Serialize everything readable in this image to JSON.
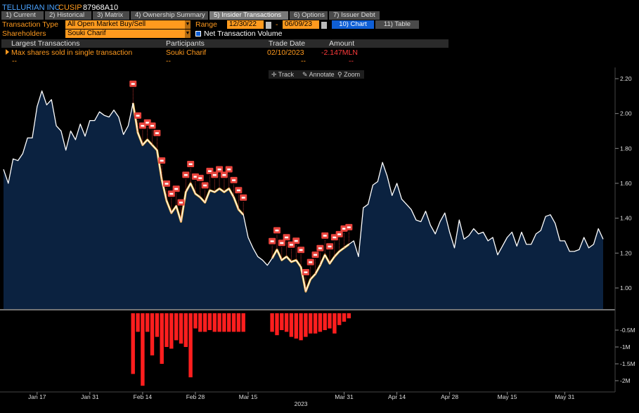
{
  "header": {
    "company": "TELLURIAN INC",
    "cusip_label": "CUSIP",
    "cusip": "87968A10"
  },
  "tabs": [
    {
      "label": "1) Current"
    },
    {
      "label": "2) Historical"
    },
    {
      "label": "3) Matrix"
    },
    {
      "label": "4) Ownership Summary"
    },
    {
      "label": "5) Insider Transactions"
    },
    {
      "label": "6) Options"
    },
    {
      "label": "7) Issuer Debt"
    }
  ],
  "controls": {
    "transaction_type_label": "Transaction Type",
    "transaction_type_value": "All Open Market Buy/Sell",
    "range_label": "Range",
    "range_start": "12/30/22",
    "range_sep": "-",
    "range_end": "06/09/23",
    "chart_button": "10) Chart",
    "table_button": "11) Table",
    "shareholders_label": "Shareholders",
    "shareholders_value": "Souki Charif",
    "net_volume_label": "Net Transaction Volume"
  },
  "largest": {
    "columns": [
      "Largest Transactions",
      "Participants",
      "Trade Date",
      "Amount"
    ],
    "rows": [
      {
        "desc": "Max shares sold in single transaction",
        "participant": "Souki Charif",
        "date": "02/10/2023",
        "amount": "-2.147MLN"
      },
      {
        "desc": "--",
        "participant": "--",
        "date": "--",
        "amount": "--"
      }
    ]
  },
  "toolbar": {
    "track": "Track",
    "annotate": "Annotate",
    "zoom": "Zoom"
  },
  "colors": {
    "accent": "#ff9a1e",
    "price_line": "#ffffff",
    "price_fill": "#0b2240",
    "marker": "#e8433c",
    "volume_bar": "#ff1e1e",
    "highlight_line": "#f5b942"
  },
  "chart_data": {
    "type": "line",
    "price": {
      "y_ticks": [
        "2.20",
        "2.00",
        "1.80",
        "1.60",
        "1.40",
        "1.20",
        "1.00"
      ],
      "ylim": [
        0.88,
        2.26
      ],
      "values": [
        1.68,
        1.6,
        1.74,
        1.73,
        1.77,
        1.86,
        1.86,
        2.04,
        2.13,
        2.05,
        2.08,
        1.93,
        1.9,
        1.79,
        1.9,
        1.85,
        1.94,
        1.87,
        1.96,
        1.96,
        2.01,
        1.99,
        1.98,
        2.02,
        1.98,
        1.88,
        1.93,
        2.06,
        1.89,
        1.82,
        1.85,
        1.82,
        1.79,
        1.62,
        1.5,
        1.43,
        1.47,
        1.38,
        1.55,
        1.6,
        1.54,
        1.52,
        1.49,
        1.56,
        1.55,
        1.57,
        1.55,
        1.57,
        1.52,
        1.45,
        1.42,
        1.29,
        1.23,
        1.18,
        1.16,
        1.13,
        1.17,
        1.22,
        1.16,
        1.18,
        1.15,
        1.16,
        1.12,
        0.98,
        1.05,
        1.08,
        1.13,
        1.19,
        1.14,
        1.18,
        1.21,
        1.23,
        1.25,
        1.27,
        1.18,
        1.46,
        1.48,
        1.59,
        1.61,
        1.72,
        1.64,
        1.53,
        1.6,
        1.51,
        1.48,
        1.45,
        1.39,
        1.38,
        1.44,
        1.36,
        1.31,
        1.38,
        1.43,
        1.32,
        1.23,
        1.39,
        1.28,
        1.3,
        1.34,
        1.31,
        1.32,
        1.27,
        1.29,
        1.19,
        1.24,
        1.29,
        1.32,
        1.24,
        1.32,
        1.25,
        1.25,
        1.31,
        1.33,
        1.41,
        1.42,
        1.37,
        1.27,
        1.27,
        1.21,
        1.21,
        1.22,
        1.29,
        1.23,
        1.25,
        1.34,
        1.28
      ]
    },
    "volume": {
      "y_ticks": [
        "-0.5M",
        "-1M",
        "-1.5M",
        "-2M"
      ],
      "ylim": [
        -2.25,
        0
      ],
      "bars": [
        {
          "i": 27,
          "v": -1.8
        },
        {
          "i": 28,
          "v": -0.55
        },
        {
          "i": 29,
          "v": -2.15
        },
        {
          "i": 30,
          "v": -0.55
        },
        {
          "i": 31,
          "v": -1.25
        },
        {
          "i": 32,
          "v": -0.7
        },
        {
          "i": 33,
          "v": -1.5
        },
        {
          "i": 34,
          "v": -1.0
        },
        {
          "i": 35,
          "v": -1.05
        },
        {
          "i": 36,
          "v": -0.8
        },
        {
          "i": 37,
          "v": -0.9
        },
        {
          "i": 38,
          "v": -1.0
        },
        {
          "i": 39,
          "v": -1.9
        },
        {
          "i": 40,
          "v": -0.45
        },
        {
          "i": 41,
          "v": -0.55
        },
        {
          "i": 42,
          "v": -0.55
        },
        {
          "i": 43,
          "v": -0.5
        },
        {
          "i": 44,
          "v": -0.55
        },
        {
          "i": 45,
          "v": -0.55
        },
        {
          "i": 46,
          "v": -0.55
        },
        {
          "i": 47,
          "v": -0.55
        },
        {
          "i": 48,
          "v": -0.55
        },
        {
          "i": 49,
          "v": -0.55
        },
        {
          "i": 50,
          "v": -0.55
        },
        {
          "i": 56,
          "v": -0.55
        },
        {
          "i": 57,
          "v": -0.65
        },
        {
          "i": 58,
          "v": -0.5
        },
        {
          "i": 59,
          "v": -0.55
        },
        {
          "i": 60,
          "v": -0.7
        },
        {
          "i": 61,
          "v": -0.75
        },
        {
          "i": 62,
          "v": -0.8
        },
        {
          "i": 63,
          "v": -0.7
        },
        {
          "i": 64,
          "v": -0.6
        },
        {
          "i": 65,
          "v": -0.6
        },
        {
          "i": 66,
          "v": -0.55
        },
        {
          "i": 67,
          "v": -0.5
        },
        {
          "i": 68,
          "v": -0.45
        },
        {
          "i": 69,
          "v": -0.6
        },
        {
          "i": 70,
          "v": -0.35
        },
        {
          "i": 71,
          "v": -0.25
        },
        {
          "i": 72,
          "v": -0.15
        }
      ]
    },
    "markers": [
      27,
      28,
      29,
      30,
      31,
      32,
      33,
      34,
      35,
      36,
      37,
      38,
      39,
      40,
      41,
      42,
      43,
      44,
      45,
      46,
      47,
      48,
      49,
      50,
      56,
      57,
      58,
      59,
      60,
      61,
      62,
      63,
      64,
      65,
      66,
      67,
      68,
      69,
      70,
      71,
      72
    ],
    "x_labels": [
      {
        "i": 7,
        "label": "Jan 17"
      },
      {
        "i": 18,
        "label": "Jan 31"
      },
      {
        "i": 29,
        "label": "Feb 14"
      },
      {
        "i": 40,
        "label": "Feb 28"
      },
      {
        "i": 51,
        "label": "Mar 15"
      },
      {
        "i": 62,
        "label": "2023"
      },
      {
        "i": 71,
        "label": "Mar 31"
      },
      {
        "i": 82,
        "label": "Apr 14"
      },
      {
        "i": 93,
        "label": "Apr 28"
      },
      {
        "i": 105,
        "label": "May 15"
      },
      {
        "i": 117,
        "label": "May 31"
      }
    ]
  }
}
